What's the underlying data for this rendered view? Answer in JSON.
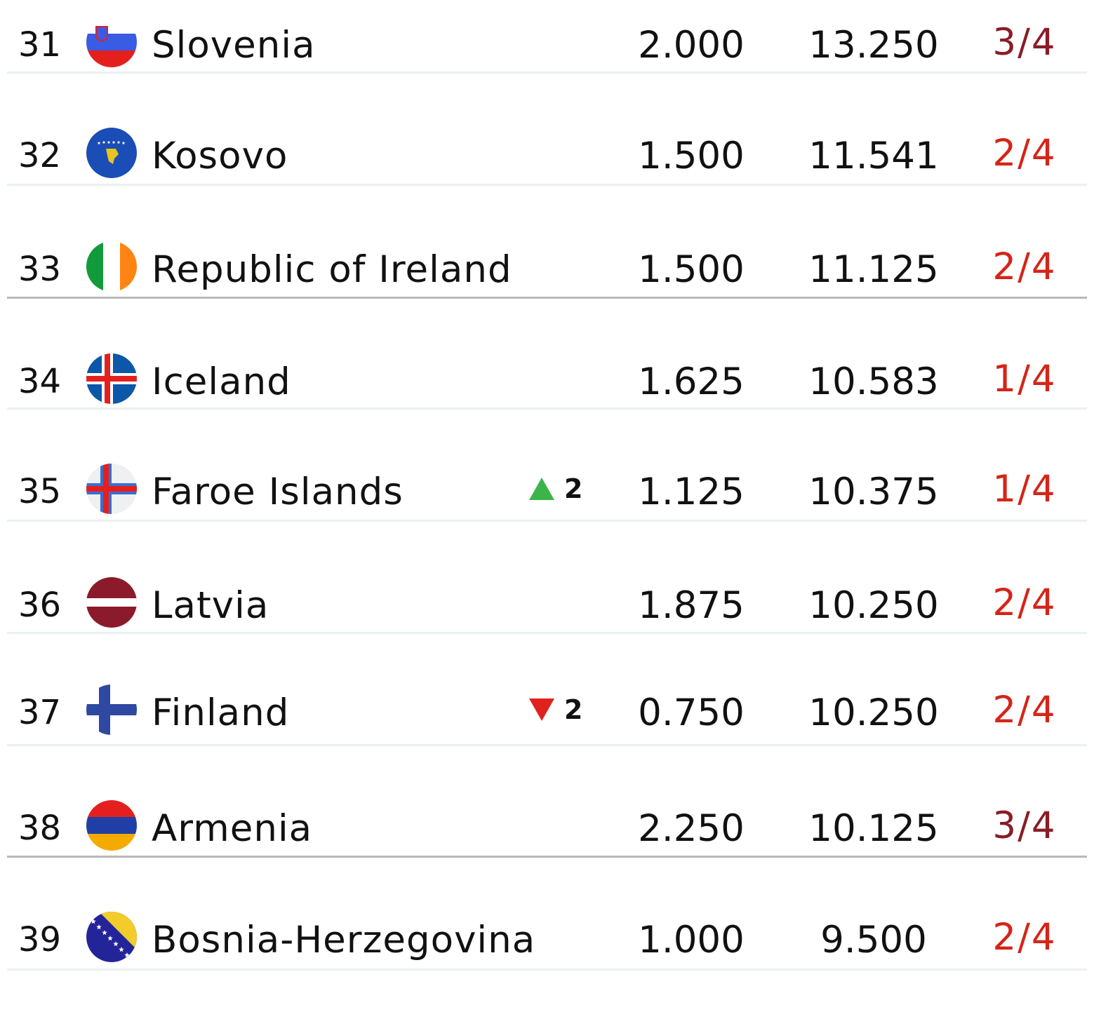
{
  "colors": {
    "ratio_dark": "#8a1c26",
    "ratio_red": "#d42518",
    "up": "#3cb44b",
    "down": "#e0221e",
    "separator": "#e9f1f1",
    "separator_major": "#b9b9b9"
  },
  "rows": [
    {
      "rank": "31",
      "country": "Slovenia",
      "flag": "slovenia-flag-icon",
      "value1": "2.000",
      "value2": "13.250",
      "ratio": "3/4",
      "ratio_color": "#8a1c26",
      "separator": "minor"
    },
    {
      "rank": "32",
      "country": "Kosovo",
      "flag": "kosovo-flag-icon",
      "value1": "1.500",
      "value2": "11.541",
      "ratio": "2/4",
      "ratio_color": "#d42518",
      "separator": "minor"
    },
    {
      "rank": "33",
      "country": "Republic of Ireland",
      "flag": "ireland-flag-icon",
      "value1": "1.500",
      "value2": "11.125",
      "ratio": "2/4",
      "ratio_color": "#d42518",
      "separator": "major"
    },
    {
      "rank": "34",
      "country": "Iceland",
      "flag": "iceland-flag-icon",
      "value1": "1.625",
      "value2": "10.583",
      "ratio": "1/4",
      "ratio_color": "#d42518",
      "separator": "minor"
    },
    {
      "rank": "35",
      "country": "Faroe Islands",
      "flag": "faroe-islands-flag-icon",
      "movement": {
        "direction": "up",
        "amount": "2"
      },
      "value1": "1.125",
      "value2": "10.375",
      "ratio": "1/4",
      "ratio_color": "#d42518",
      "separator": "minor"
    },
    {
      "rank": "36",
      "country": "Latvia",
      "flag": "latvia-flag-icon",
      "value1": "1.875",
      "value2": "10.250",
      "ratio": "2/4",
      "ratio_color": "#d42518",
      "separator": "minor"
    },
    {
      "rank": "37",
      "country": "Finland",
      "flag": "finland-flag-icon",
      "movement": {
        "direction": "down",
        "amount": "2"
      },
      "value1": "0.750",
      "value2": "10.250",
      "ratio": "2/4",
      "ratio_color": "#d42518",
      "separator": "minor"
    },
    {
      "rank": "38",
      "country": "Armenia",
      "flag": "armenia-flag-icon",
      "value1": "2.250",
      "value2": "10.125",
      "ratio": "3/4",
      "ratio_color": "#8a1c26",
      "separator": "major"
    },
    {
      "rank": "39",
      "country": "Bosnia-Herzegovina",
      "flag": "bosnia-herzegovina-flag-icon",
      "value1": "1.000",
      "value2": "9.500",
      "ratio": "2/4",
      "ratio_color": "#d42518",
      "separator": "minor"
    }
  ]
}
